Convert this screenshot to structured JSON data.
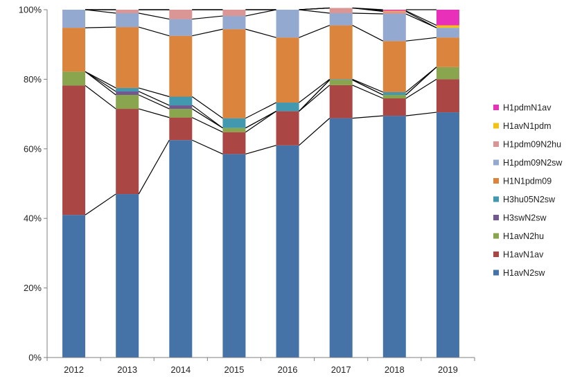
{
  "chart_data": {
    "type": "bar",
    "stacked": true,
    "normalized": true,
    "title": "",
    "xlabel": "",
    "ylabel": "",
    "ylim": [
      0,
      100
    ],
    "yticks": [
      "0%",
      "20%",
      "40%",
      "60%",
      "80%",
      "100%"
    ],
    "categories": [
      "2012",
      "2013",
      "2014",
      "2015",
      "2016",
      "2017",
      "2018",
      "2019"
    ],
    "legend_position": "right",
    "series_connector_lines": true,
    "series": [
      {
        "name": "H1avN2sw",
        "color": "#4572a7",
        "values": [
          41.0,
          47.0,
          62.5,
          58.5,
          61.0,
          68.8,
          69.5,
          70.5
        ]
      },
      {
        "name": "H1avN1av",
        "color": "#aa4643",
        "values": [
          37.2,
          24.5,
          6.5,
          6.3,
          9.8,
          9.5,
          5.0,
          9.5
        ]
      },
      {
        "name": "H1avN2hu",
        "color": "#89a54e",
        "values": [
          4.0,
          4.0,
          2.5,
          1.2,
          0.0,
          1.5,
          1.0,
          3.5
        ]
      },
      {
        "name": "H3swN2sw",
        "color": "#71588f",
        "values": [
          0.0,
          1.0,
          1.0,
          0.0,
          0.0,
          0.0,
          0.0,
          0.0
        ]
      },
      {
        "name": "H3hu05N2sw",
        "color": "#4198af",
        "values": [
          0.0,
          1.0,
          2.5,
          2.8,
          2.5,
          0.2,
          0.8,
          0.0
        ]
      },
      {
        "name": "H1N1pdm09",
        "color": "#db843d",
        "values": [
          12.6,
          17.5,
          17.5,
          25.6,
          18.7,
          15.5,
          14.7,
          8.5
        ]
      },
      {
        "name": "H1pdm09N2sw",
        "color": "#93a9cf",
        "values": [
          5.2,
          4.0,
          4.8,
          3.8,
          8.0,
          3.5,
          7.8,
          2.8
        ]
      },
      {
        "name": "H1pdm09N2hu",
        "color": "#d99694",
        "values": [
          0.0,
          1.0,
          2.7,
          1.8,
          0.0,
          1.5,
          0.7,
          0.0
        ]
      },
      {
        "name": "H1avN1pdm",
        "color": "#f2c314",
        "values": [
          0.0,
          0.0,
          0.0,
          0.0,
          0.0,
          0.0,
          0.2,
          0.7
        ]
      },
      {
        "name": "H1pdmN1av",
        "color": "#e830b8",
        "values": [
          0.0,
          0.0,
          0.0,
          0.0,
          0.0,
          0.0,
          0.3,
          4.5
        ]
      }
    ]
  }
}
